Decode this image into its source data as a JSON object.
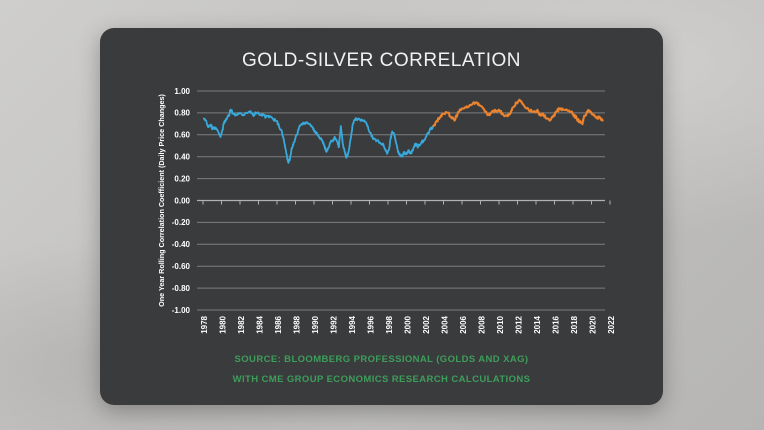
{
  "panel": {
    "title": "GOLD-SILVER CORRELATION",
    "background": "#3a3b3d",
    "title_color": "#f2f2f3"
  },
  "source": {
    "line1": "SOURCE: BLOOMBERG PROFESSIONAL (GOLDS AND XAG)",
    "line2": "WITH CME GROUP ECONOMICS RESEARCH CALCULATIONS",
    "color": "#3d9e5b"
  },
  "chart_data": {
    "type": "line",
    "title": "GOLD-SILVER CORRELATION",
    "xlabel": "",
    "ylabel": "One Year Rolling Correlation Coefficient (Daily Price Changes)",
    "ylim": [
      -1.0,
      1.0
    ],
    "xlim": [
      1977.5,
      2023
    ],
    "grid": "horizontal",
    "legend": "none",
    "y_tick_values": [
      1.0,
      0.8,
      0.6,
      0.4,
      0.2,
      0.0,
      -0.2,
      -0.4,
      -0.6,
      -0.8,
      -1.0
    ],
    "y_tick_labels": [
      "1.00",
      "0.80",
      "0.60",
      "0.40",
      "0.20",
      "0.00",
      "-0.20",
      "-0.40",
      "-0.60",
      "-0.80",
      "-1.00"
    ],
    "x_ticks": [
      1978,
      1980,
      1982,
      1984,
      1986,
      1988,
      1990,
      1992,
      1994,
      1996,
      1998,
      2000,
      2002,
      2004,
      2006,
      2008,
      2010,
      2012,
      2014,
      2016,
      2018,
      2020,
      2022
    ],
    "colors": {
      "grid": "#7d7e81",
      "zero_axis": "#b2b2b4",
      "tick_text": "#ffffff",
      "blue_series": "#37aadc",
      "orange_series": "#eb822d"
    },
    "series": [
      {
        "name": "blue",
        "color": "#37aadc",
        "points": [
          [
            1978.1,
            0.75
          ],
          [
            1978.4,
            0.71
          ],
          [
            1978.6,
            0.67
          ],
          [
            1978.9,
            0.69
          ],
          [
            1979.0,
            0.65
          ],
          [
            1979.2,
            0.67
          ],
          [
            1979.45,
            0.655
          ],
          [
            1979.7,
            0.62
          ],
          [
            1979.9,
            0.58
          ],
          [
            1980.1,
            0.64
          ],
          [
            1980.3,
            0.72
          ],
          [
            1980.55,
            0.74
          ],
          [
            1980.8,
            0.78
          ],
          [
            1981.0,
            0.83
          ],
          [
            1981.3,
            0.79
          ],
          [
            1981.6,
            0.78
          ],
          [
            1982.0,
            0.8
          ],
          [
            1982.3,
            0.78
          ],
          [
            1982.6,
            0.8
          ],
          [
            1983.1,
            0.81
          ],
          [
            1983.4,
            0.78
          ],
          [
            1983.7,
            0.8
          ],
          [
            1984.2,
            0.78
          ],
          [
            1984.5,
            0.79
          ],
          [
            1984.8,
            0.76
          ],
          [
            1985.2,
            0.77
          ],
          [
            1985.6,
            0.74
          ],
          [
            1986.0,
            0.72
          ],
          [
            1986.2,
            0.68
          ],
          [
            1986.5,
            0.64
          ],
          [
            1986.75,
            0.55
          ],
          [
            1987.0,
            0.43
          ],
          [
            1987.2,
            0.35
          ],
          [
            1987.4,
            0.38
          ],
          [
            1987.6,
            0.48
          ],
          [
            1987.8,
            0.53
          ],
          [
            1988.2,
            0.61
          ],
          [
            1988.4,
            0.67
          ],
          [
            1988.7,
            0.7
          ],
          [
            1989.0,
            0.71
          ],
          [
            1989.4,
            0.7
          ],
          [
            1989.8,
            0.67
          ],
          [
            1990.0,
            0.64
          ],
          [
            1990.3,
            0.62
          ],
          [
            1990.55,
            0.58
          ],
          [
            1990.9,
            0.55
          ],
          [
            1991.1,
            0.5
          ],
          [
            1991.3,
            0.45
          ],
          [
            1991.55,
            0.48
          ],
          [
            1991.8,
            0.53
          ],
          [
            1992.1,
            0.56
          ],
          [
            1992.25,
            0.58
          ],
          [
            1992.5,
            0.54
          ],
          [
            1992.7,
            0.49
          ],
          [
            1992.9,
            0.68
          ],
          [
            1993.1,
            0.52
          ],
          [
            1993.35,
            0.44
          ],
          [
            1993.5,
            0.39
          ],
          [
            1993.7,
            0.43
          ],
          [
            1994.0,
            0.58
          ],
          [
            1994.2,
            0.7
          ],
          [
            1994.45,
            0.74
          ],
          [
            1994.8,
            0.75
          ],
          [
            1995.2,
            0.73
          ],
          [
            1995.5,
            0.72
          ],
          [
            1995.75,
            0.68
          ],
          [
            1996.1,
            0.62
          ],
          [
            1996.4,
            0.56
          ],
          [
            1996.8,
            0.55
          ],
          [
            1997.1,
            0.53
          ],
          [
            1997.45,
            0.52
          ],
          [
            1997.7,
            0.47
          ],
          [
            1997.95,
            0.43
          ],
          [
            1998.1,
            0.46
          ],
          [
            1998.3,
            0.58
          ],
          [
            1998.45,
            0.63
          ],
          [
            1998.65,
            0.61
          ],
          [
            1999.0,
            0.48
          ],
          [
            1999.2,
            0.42
          ],
          [
            1999.5,
            0.4
          ],
          [
            1999.7,
            0.44
          ],
          [
            1999.95,
            0.42
          ],
          [
            2000.2,
            0.46
          ],
          [
            2000.5,
            0.43
          ],
          [
            2000.75,
            0.48
          ],
          [
            2001.0,
            0.52
          ],
          [
            2001.25,
            0.49
          ],
          [
            2001.6,
            0.53
          ],
          [
            2001.85,
            0.55
          ],
          [
            2002.1,
            0.58
          ],
          [
            2002.35,
            0.62
          ],
          [
            2002.6,
            0.65
          ],
          [
            2002.9,
            0.68
          ]
        ]
      },
      {
        "name": "orange",
        "color": "#eb822d",
        "points": [
          [
            2002.9,
            0.68
          ],
          [
            2003.3,
            0.73
          ],
          [
            2003.6,
            0.76
          ],
          [
            2003.9,
            0.79
          ],
          [
            2004.5,
            0.8
          ],
          [
            2004.9,
            0.75
          ],
          [
            2005.2,
            0.73
          ],
          [
            2005.6,
            0.81
          ],
          [
            2006.1,
            0.84
          ],
          [
            2006.6,
            0.85
          ],
          [
            2007.2,
            0.89
          ],
          [
            2007.6,
            0.89
          ],
          [
            2007.9,
            0.87
          ],
          [
            2008.3,
            0.84
          ],
          [
            2008.7,
            0.79
          ],
          [
            2009.0,
            0.78
          ],
          [
            2009.4,
            0.82
          ],
          [
            2009.8,
            0.81
          ],
          [
            2010.1,
            0.82
          ],
          [
            2010.4,
            0.79
          ],
          [
            2010.9,
            0.77
          ],
          [
            2011.2,
            0.79
          ],
          [
            2011.5,
            0.85
          ],
          [
            2011.9,
            0.89
          ],
          [
            2012.3,
            0.91
          ],
          [
            2012.6,
            0.88
          ],
          [
            2013.0,
            0.84
          ],
          [
            2013.4,
            0.82
          ],
          [
            2013.7,
            0.81
          ],
          [
            2014.1,
            0.82
          ],
          [
            2014.4,
            0.79
          ],
          [
            2014.8,
            0.78
          ],
          [
            2015.2,
            0.75
          ],
          [
            2015.5,
            0.73
          ],
          [
            2015.8,
            0.76
          ],
          [
            2016.3,
            0.82
          ],
          [
            2016.6,
            0.84
          ],
          [
            2016.9,
            0.83
          ],
          [
            2017.4,
            0.82
          ],
          [
            2017.7,
            0.81
          ],
          [
            2018.0,
            0.79
          ],
          [
            2018.4,
            0.75
          ],
          [
            2018.8,
            0.71
          ],
          [
            2019.0,
            0.7
          ],
          [
            2019.15,
            0.75
          ],
          [
            2019.5,
            0.81
          ],
          [
            2019.8,
            0.82
          ],
          [
            2020.2,
            0.78
          ],
          [
            2020.6,
            0.75
          ],
          [
            2020.9,
            0.76
          ],
          [
            2021.2,
            0.73
          ]
        ]
      }
    ]
  }
}
